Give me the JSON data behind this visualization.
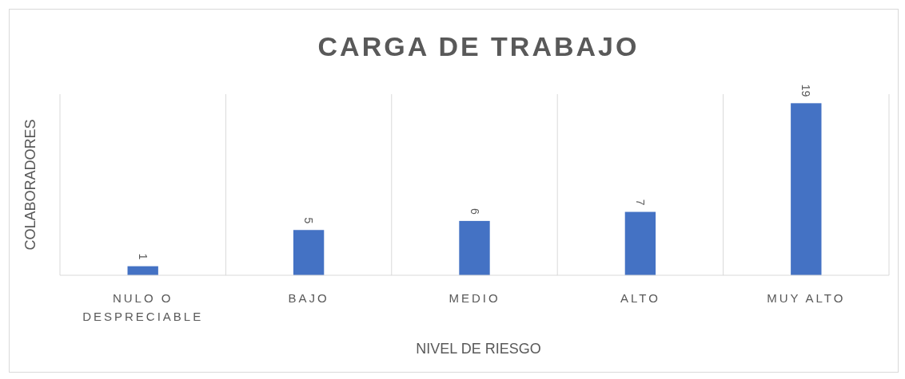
{
  "chart_data": {
    "type": "bar",
    "title": "CARGA DE TRABAJO",
    "xlabel": "NIVEL DE RIESGO",
    "ylabel": "COLABORADORES",
    "categories": [
      "NULO O DESPRECIABLE",
      "BAJO",
      "MEDIO",
      "ALTO",
      "MUY ALTO"
    ],
    "values": [
      1,
      5,
      6,
      7,
      19
    ],
    "color": "#4472c4",
    "ylim": [
      0,
      20
    ],
    "data_labels": true,
    "grid": "x",
    "tick_labels": "x"
  }
}
